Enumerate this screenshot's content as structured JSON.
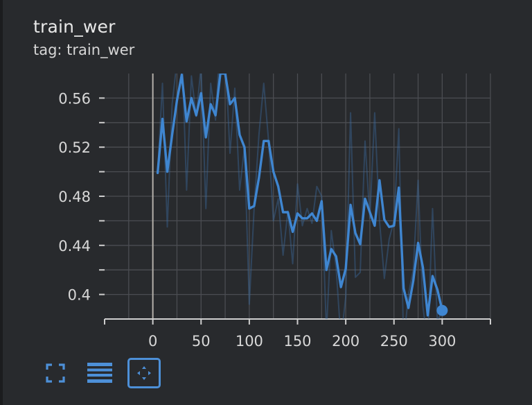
{
  "card": {
    "title": "train_wer",
    "subtitle": "tag: train_wer"
  },
  "toolbar": {
    "fullscreen_icon": "expand-corners-icon",
    "log_scale_icon": "lines-icon",
    "fit_domain_icon": "fit-to-data-icon",
    "accent_color": "#4d90d8"
  },
  "chart_data": {
    "type": "line",
    "xlim": [
      -50,
      350
    ],
    "ylim": [
      0.38,
      0.58
    ],
    "x_ticks": [
      "0",
      "50",
      "100",
      "150",
      "200",
      "250",
      "300"
    ],
    "y_ticks": [
      "0.4",
      "0.44",
      "0.48",
      "0.52",
      "0.56"
    ],
    "grid": true,
    "series": [
      {
        "role": "raw",
        "color": "#3b6ea5",
        "x": [
          5,
          10,
          15,
          20,
          25,
          30,
          35,
          40,
          45,
          50,
          55,
          60,
          65,
          70,
          75,
          80,
          85,
          90,
          95,
          100,
          105,
          110,
          115,
          120,
          125,
          130,
          135,
          140,
          145,
          150,
          155,
          160,
          165,
          170,
          175,
          180,
          185,
          190,
          195,
          200,
          205,
          210,
          215,
          220,
          225,
          230,
          235,
          240,
          245,
          250,
          255,
          260,
          265,
          270,
          275,
          280,
          285,
          290,
          295,
          300
        ],
        "y": [
          0.499,
          0.572,
          0.455,
          0.555,
          0.59,
          0.603,
          0.485,
          0.578,
          0.545,
          0.586,
          0.47,
          0.572,
          0.542,
          0.61,
          0.595,
          0.515,
          0.568,
          0.485,
          0.52,
          0.392,
          0.47,
          0.53,
          0.572,
          0.525,
          0.46,
          0.478,
          0.432,
          0.468,
          0.425,
          0.49,
          0.456,
          0.47,
          0.458,
          0.488,
          0.48,
          0.37,
          0.452,
          0.422,
          0.363,
          0.398,
          0.548,
          0.414,
          0.418,
          0.525,
          0.462,
          0.548,
          0.46,
          0.413,
          0.445,
          0.46,
          0.535,
          0.36,
          0.4,
          0.42,
          0.493,
          0.39,
          0.36,
          0.47,
          0.378,
          0.387
        ]
      },
      {
        "role": "smoothed",
        "color": "#3f86d1",
        "x": [
          5,
          10,
          15,
          20,
          25,
          30,
          35,
          40,
          45,
          50,
          55,
          60,
          65,
          70,
          75,
          80,
          85,
          90,
          95,
          100,
          105,
          110,
          115,
          120,
          125,
          130,
          135,
          140,
          145,
          150,
          155,
          160,
          165,
          170,
          175,
          180,
          185,
          190,
          195,
          200,
          205,
          210,
          215,
          220,
          225,
          230,
          235,
          240,
          245,
          250,
          255,
          260,
          265,
          270,
          275,
          280,
          285,
          290,
          295,
          300
        ],
        "y": [
          0.499,
          0.543,
          0.5,
          0.53,
          0.558,
          0.579,
          0.541,
          0.56,
          0.546,
          0.564,
          0.528,
          0.555,
          0.546,
          0.58,
          0.58,
          0.555,
          0.56,
          0.53,
          0.52,
          0.47,
          0.472,
          0.495,
          0.525,
          0.525,
          0.5,
          0.488,
          0.467,
          0.467,
          0.451,
          0.466,
          0.462,
          0.462,
          0.466,
          0.46,
          0.476,
          0.42,
          0.437,
          0.431,
          0.406,
          0.421,
          0.473,
          0.45,
          0.441,
          0.478,
          0.467,
          0.456,
          0.493,
          0.461,
          0.455,
          0.456,
          0.487,
          0.405,
          0.389,
          0.411,
          0.442,
          0.422,
          0.383,
          0.415,
          0.404,
          0.387
        ]
      }
    ]
  }
}
